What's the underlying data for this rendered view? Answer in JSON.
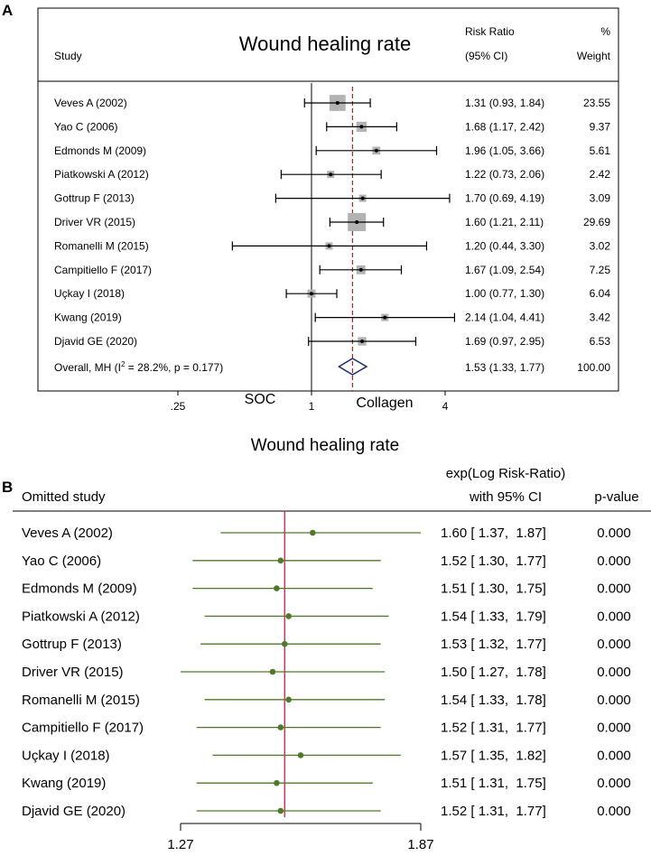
{
  "panel_a": {
    "letter": "A",
    "title": "Wound healing rate",
    "col_study": "Study",
    "col_rr_line1": "Risk Ratio",
    "col_rr_line2": "(95% CI)",
    "col_w_line1": "%",
    "col_w_line2": "Weight",
    "overall_label_start": "Overall, MH (I",
    "overall_label_sup": "2",
    "overall_label_end": " = 28.2%, p = 0.177)",
    "overall_ci_text": "1.53 (1.33, 1.77)",
    "overall_weight": "100.00",
    "left_label": "SOC",
    "right_label": "Collagen",
    "colors": {
      "box": "#b3b3b3",
      "dash": "#a52a2a",
      "diamond": "#1f2a7a",
      "line": "#000000"
    }
  },
  "panel_b": {
    "letter": "B",
    "title": "Wound healing rate",
    "col_study": "Omitted study",
    "col_est_line1": "exp(Log Risk-Ratio)",
    "col_est_line2": "with 95% CI",
    "col_p": "p-value",
    "colors": {
      "line": "#4f7a28",
      "point": "#4f7a28",
      "ref": "#d21a4a"
    }
  },
  "chart_data": [
    {
      "type": "forest",
      "title": "Wound healing rate",
      "xscale": "log",
      "xlim": [
        0.125,
        6.5
      ],
      "ticks": [
        0.25,
        1,
        4
      ],
      "tick_labels": [
        ".25",
        "1",
        "4"
      ],
      "reference_line": 1,
      "overall_line": 1.53,
      "studies": [
        {
          "label": "Veves A (2002)",
          "rr": 1.31,
          "lo": 0.93,
          "hi": 1.84,
          "ci_text": "1.31 (0.93, 1.84)",
          "weight": 23.55,
          "weight_text": "23.55"
        },
        {
          "label": "Yao C (2006)",
          "rr": 1.68,
          "lo": 1.17,
          "hi": 2.42,
          "ci_text": "1.68 (1.17, 2.42)",
          "weight": 9.37,
          "weight_text": "9.37"
        },
        {
          "label": "Edmonds M (2009)",
          "rr": 1.96,
          "lo": 1.05,
          "hi": 3.66,
          "ci_text": "1.96 (1.05, 3.66)",
          "weight": 5.61,
          "weight_text": "5.61"
        },
        {
          "label": "Piatkowski A (2012)",
          "rr": 1.22,
          "lo": 0.73,
          "hi": 2.06,
          "ci_text": "1.22 (0.73, 2.06)",
          "weight": 2.42,
          "weight_text": "2.42"
        },
        {
          "label": "Gottrup F (2013)",
          "rr": 1.7,
          "lo": 0.69,
          "hi": 4.19,
          "ci_text": "1.70 (0.69, 4.19)",
          "weight": 3.09,
          "weight_text": "3.09"
        },
        {
          "label": "Driver VR (2015)",
          "rr": 1.6,
          "lo": 1.21,
          "hi": 2.11,
          "ci_text": "1.60 (1.21, 2.11)",
          "weight": 29.69,
          "weight_text": "29.69"
        },
        {
          "label": "Romanelli M (2015)",
          "rr": 1.2,
          "lo": 0.44,
          "hi": 3.3,
          "ci_text": "1.20 (0.44, 3.30)",
          "weight": 3.02,
          "weight_text": "3.02"
        },
        {
          "label": "Campitiello F (2017)",
          "rr": 1.67,
          "lo": 1.09,
          "hi": 2.54,
          "ci_text": "1.67 (1.09, 2.54)",
          "weight": 7.25,
          "weight_text": "7.25"
        },
        {
          "label": "Uçkay I (2018)",
          "rr": 1.0,
          "lo": 0.77,
          "hi": 1.3,
          "ci_text": "1.00 (0.77, 1.30)",
          "weight": 6.04,
          "weight_text": "6.04"
        },
        {
          "label": "Kwang (2019)",
          "rr": 2.14,
          "lo": 1.04,
          "hi": 4.41,
          "ci_text": "2.14 (1.04, 4.41)",
          "weight": 3.42,
          "weight_text": "3.42"
        },
        {
          "label": "Djavid GE (2020)",
          "rr": 1.69,
          "lo": 0.97,
          "hi": 2.95,
          "ci_text": "1.69 (0.97, 2.95)",
          "weight": 6.53,
          "weight_text": "6.53"
        }
      ],
      "overall": {
        "rr": 1.53,
        "lo": 1.33,
        "hi": 1.77
      }
    },
    {
      "type": "leave-one-out",
      "title": "Wound healing rate",
      "xlim": [
        1.27,
        1.87
      ],
      "ticks": [
        1.27,
        1.87
      ],
      "tick_labels": [
        "1.27",
        "1.87"
      ],
      "reference_line": 1.53,
      "rows": [
        {
          "label": "Veves A (2002)",
          "est": 1.6,
          "lo": 1.37,
          "hi": 1.87,
          "ci_text": "1.60 [ 1.37,  1.87]",
          "p": "0.000"
        },
        {
          "label": "Yao C (2006)",
          "est": 1.52,
          "lo": 1.3,
          "hi": 1.77,
          "ci_text": "1.52 [ 1.30,  1.77]",
          "p": "0.000"
        },
        {
          "label": "Edmonds M (2009)",
          "est": 1.51,
          "lo": 1.3,
          "hi": 1.75,
          "ci_text": "1.51 [ 1.30,  1.75]",
          "p": "0.000"
        },
        {
          "label": "Piatkowski A (2012)",
          "est": 1.54,
          "lo": 1.33,
          "hi": 1.79,
          "ci_text": "1.54 [ 1.33,  1.79]",
          "p": "0.000"
        },
        {
          "label": "Gottrup F (2013)",
          "est": 1.53,
          "lo": 1.32,
          "hi": 1.77,
          "ci_text": "1.53 [ 1.32,  1.77]",
          "p": "0.000"
        },
        {
          "label": "Driver VR (2015)",
          "est": 1.5,
          "lo": 1.27,
          "hi": 1.78,
          "ci_text": "1.50 [ 1.27,  1.78]",
          "p": "0.000"
        },
        {
          "label": "Romanelli M (2015)",
          "est": 1.54,
          "lo": 1.33,
          "hi": 1.78,
          "ci_text": "1.54 [ 1.33,  1.78]",
          "p": "0.000"
        },
        {
          "label": "Campitiello F (2017)",
          "est": 1.52,
          "lo": 1.31,
          "hi": 1.77,
          "ci_text": "1.52 [ 1.31,  1.77]",
          "p": "0.000"
        },
        {
          "label": "Uçkay I (2018)",
          "est": 1.57,
          "lo": 1.35,
          "hi": 1.82,
          "ci_text": "1.57 [ 1.35,  1.82]",
          "p": "0.000"
        },
        {
          "label": "Kwang (2019)",
          "est": 1.51,
          "lo": 1.31,
          "hi": 1.75,
          "ci_text": "1.51 [ 1.31,  1.75]",
          "p": "0.000"
        },
        {
          "label": "Djavid GE (2020)",
          "est": 1.52,
          "lo": 1.31,
          "hi": 1.77,
          "ci_text": "1.52 [ 1.31,  1.77]",
          "p": "0.000"
        }
      ]
    }
  ]
}
